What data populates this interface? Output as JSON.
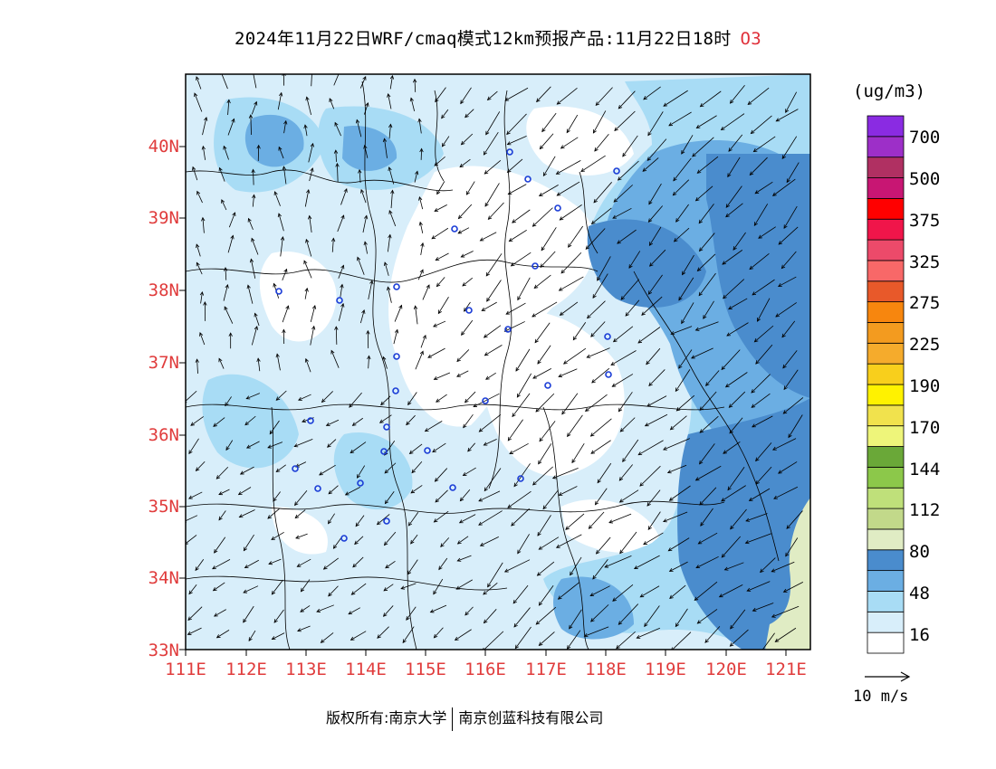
{
  "title": {
    "main": "2024年11月22日WRF/cmaq模式12km预报产品:11月22日18时",
    "species": "O3"
  },
  "map": {
    "lat_ticks": [
      "33N",
      "34N",
      "35N",
      "36N",
      "37N",
      "38N",
      "39N",
      "40N"
    ],
    "lon_ticks": [
      "111E",
      "112E",
      "113E",
      "114E",
      "115E",
      "116E",
      "117E",
      "118E",
      "119E",
      "120E",
      "121E"
    ],
    "lat_range": [
      33,
      41
    ],
    "lon_range": [
      111,
      121.4
    ]
  },
  "colorbar": {
    "unit": "(ug/m3)",
    "labels": [
      "16",
      "48",
      "80",
      "112",
      "144",
      "170",
      "190",
      "225",
      "275",
      "325",
      "375",
      "500",
      "700"
    ],
    "colors": [
      "#ffffff",
      "#d8eefa",
      "#a8dcf5",
      "#6baee3",
      "#4a8ccd",
      "#e0ecc4",
      "#c2d98a",
      "#bfe07a",
      "#8cc84a",
      "#6aa838",
      "#eef57a",
      "#f1e24d",
      "#fff200",
      "#f8cf1c",
      "#f5ab2c",
      "#f39b1f",
      "#f7860e",
      "#e8592a",
      "#f86868",
      "#ec4a6a",
      "#f0154a",
      "#ff0000",
      "#c81673",
      "#b03062",
      "#9d2fc8",
      "#8a2be2"
    ]
  },
  "wind_reference": {
    "label": "10 m/s"
  },
  "footer": {
    "left": "版权所有:南京大学",
    "right": "南京创蓝科技有限公司"
  }
}
